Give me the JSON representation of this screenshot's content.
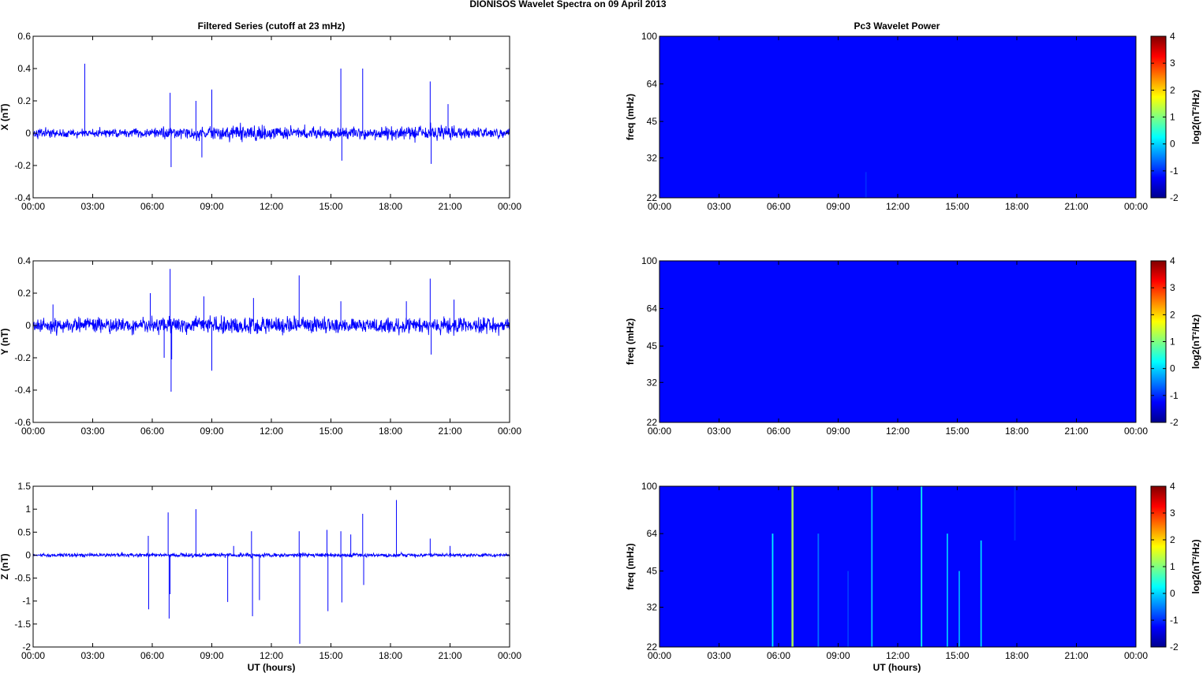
{
  "figure": {
    "title": "DIONISOS Wavelet Spectra on 09 April     2013",
    "left_title": "Filtered Series (cutoff at 23 mHz)",
    "right_title": "Pc3 Wavelet Power",
    "xlabel": "UT (hours)"
  },
  "chart_data": [
    {
      "type": "line",
      "ylabel": "X (nT)",
      "ylim": [
        -0.4,
        0.6
      ],
      "yticks": [
        "0.6",
        "0.4",
        "0.2",
        "0",
        "-0.2",
        "-0.4"
      ],
      "xlim": [
        0,
        24
      ],
      "xticks": [
        "00:00",
        "03:00",
        "06:00",
        "09:00",
        "12:00",
        "15:00",
        "18:00",
        "21:00",
        "00:00"
      ],
      "noise_amp": 0.03,
      "noise_profile": [
        [
          0,
          0.028
        ],
        [
          3,
          0.026
        ],
        [
          6,
          0.03
        ],
        [
          9,
          0.04
        ],
        [
          11,
          0.05
        ],
        [
          13,
          0.035
        ],
        [
          16,
          0.032
        ],
        [
          19,
          0.036
        ],
        [
          20.5,
          0.048
        ],
        [
          22,
          0.035
        ],
        [
          24,
          0.028
        ]
      ],
      "spikes": [
        [
          2.6,
          0.43
        ],
        [
          6.9,
          0.25
        ],
        [
          6.95,
          -0.21
        ],
        [
          8.2,
          0.2
        ],
        [
          8.5,
          -0.15
        ],
        [
          9.0,
          0.27
        ],
        [
          15.5,
          0.4
        ],
        [
          15.55,
          -0.17
        ],
        [
          16.6,
          0.4
        ],
        [
          20.0,
          0.32
        ],
        [
          20.05,
          -0.19
        ],
        [
          20.9,
          0.18
        ]
      ]
    },
    {
      "type": "line",
      "ylabel": "Y (nT)",
      "ylim": [
        -0.6,
        0.4
      ],
      "yticks": [
        "0.4",
        "0.2",
        "0",
        "-0.2",
        "-0.4",
        "-0.6"
      ],
      "xlim": [
        0,
        24
      ],
      "xticks": [
        "00:00",
        "03:00",
        "06:00",
        "09:00",
        "12:00",
        "15:00",
        "18:00",
        "21:00",
        "00:00"
      ],
      "noise_amp": 0.04,
      "noise_profile": [
        [
          0,
          0.04
        ],
        [
          6,
          0.045
        ],
        [
          9,
          0.05
        ],
        [
          11,
          0.055
        ],
        [
          14,
          0.045
        ],
        [
          20,
          0.05
        ],
        [
          24,
          0.04
        ]
      ],
      "spikes": [
        [
          1.0,
          0.13
        ],
        [
          5.9,
          0.2
        ],
        [
          6.6,
          -0.2
        ],
        [
          6.9,
          0.35
        ],
        [
          6.95,
          -0.41
        ],
        [
          6.98,
          -0.21
        ],
        [
          8.6,
          0.18
        ],
        [
          9.0,
          -0.28
        ],
        [
          11.1,
          0.17
        ],
        [
          13.4,
          0.31
        ],
        [
          15.5,
          0.15
        ],
        [
          18.8,
          0.15
        ],
        [
          20.0,
          0.29
        ],
        [
          20.05,
          -0.18
        ],
        [
          21.2,
          0.16
        ]
      ]
    },
    {
      "type": "line",
      "ylabel": "Z (nT)",
      "ylim": [
        -2,
        1.5
      ],
      "yticks": [
        "1.5",
        "1",
        "0.5",
        "0",
        "-0.5",
        "-1",
        "-1.5",
        "-2"
      ],
      "xlim": [
        0,
        24
      ],
      "xticks": [
        "00:00",
        "03:00",
        "06:00",
        "09:00",
        "12:00",
        "15:00",
        "18:00",
        "21:00",
        "00:00"
      ],
      "noise_amp": 0.04,
      "noise_profile": [
        [
          0,
          0.035
        ],
        [
          6,
          0.04
        ],
        [
          12,
          0.045
        ],
        [
          18,
          0.04
        ],
        [
          24,
          0.035
        ]
      ],
      "spikes": [
        [
          5.8,
          0.42
        ],
        [
          5.82,
          -1.18
        ],
        [
          6.8,
          0.93
        ],
        [
          6.85,
          -1.38
        ],
        [
          6.9,
          -0.85
        ],
        [
          8.2,
          1.0
        ],
        [
          9.8,
          -1.02
        ],
        [
          10.1,
          0.2
        ],
        [
          11.0,
          0.52
        ],
        [
          11.05,
          -1.33
        ],
        [
          11.4,
          -0.98
        ],
        [
          13.4,
          0.52
        ],
        [
          13.43,
          -1.93
        ],
        [
          14.8,
          0.55
        ],
        [
          14.85,
          -1.22
        ],
        [
          15.5,
          0.52
        ],
        [
          15.55,
          -1.03
        ],
        [
          16.0,
          0.45
        ],
        [
          16.6,
          0.9
        ],
        [
          16.65,
          -0.65
        ],
        [
          18.3,
          1.2
        ],
        [
          20.0,
          0.36
        ],
        [
          21.0,
          0.2
        ]
      ]
    },
    {
      "type": "heatmap",
      "ylabel": "freq (mHz)",
      "yticks": [
        "100",
        "64",
        "45",
        "32",
        "22"
      ],
      "ylim": [
        22,
        100
      ],
      "xlim": [
        0,
        24
      ],
      "xticks": [
        "00:00",
        "03:00",
        "06:00",
        "09:00",
        "12:00",
        "15:00",
        "18:00",
        "21:00",
        "00:00"
      ],
      "zlim": [
        -2,
        4
      ],
      "colorbar_label": "log2(nT²/Hz)",
      "colorbar_ticks": [
        "4",
        "3",
        "2",
        "1",
        "0",
        "-1",
        "-2"
      ],
      "background_level": -2,
      "streaks": [
        [
          10.4,
          22,
          28,
          -1.7
        ]
      ]
    },
    {
      "type": "heatmap",
      "ylabel": "freq (mHz)",
      "yticks": [
        "100",
        "64",
        "45",
        "32",
        "22"
      ],
      "ylim": [
        22,
        100
      ],
      "xlim": [
        0,
        24
      ],
      "xticks": [
        "00:00",
        "03:00",
        "06:00",
        "09:00",
        "12:00",
        "15:00",
        "18:00",
        "21:00",
        "00:00"
      ],
      "zlim": [
        -2,
        4
      ],
      "colorbar_label": "log2(nT²/Hz)",
      "colorbar_ticks": [
        "4",
        "3",
        "2",
        "1",
        "0",
        "-1",
        "-2"
      ],
      "background_level": -2,
      "streaks": []
    },
    {
      "type": "heatmap",
      "ylabel": "freq (mHz)",
      "yticks": [
        "100",
        "64",
        "45",
        "32",
        "22"
      ],
      "ylim": [
        22,
        100
      ],
      "xlim": [
        0,
        24
      ],
      "xticks": [
        "00:00",
        "03:00",
        "06:00",
        "09:00",
        "12:00",
        "15:00",
        "18:00",
        "21:00",
        "00:00"
      ],
      "xlabel": "UT (hours)",
      "zlim": [
        -2,
        4
      ],
      "colorbar_label": "log2(nT²/Hz)",
      "colorbar_ticks": [
        "4",
        "3",
        "2",
        "1",
        "0",
        "-1",
        "-2"
      ],
      "background_level": -2,
      "streaks": [
        [
          5.7,
          22,
          64,
          -0.3
        ],
        [
          6.7,
          22,
          100,
          0.9
        ],
        [
          8.0,
          22,
          64,
          -1.2
        ],
        [
          9.5,
          22,
          45,
          -1.6
        ],
        [
          10.7,
          22,
          100,
          -0.6
        ],
        [
          13.2,
          22,
          100,
          -0.2
        ],
        [
          14.5,
          22,
          64,
          -0.6
        ],
        [
          15.1,
          22,
          45,
          -0.8
        ],
        [
          16.2,
          22,
          60,
          -0.5
        ],
        [
          17.9,
          60,
          100,
          -1.7
        ]
      ]
    }
  ]
}
